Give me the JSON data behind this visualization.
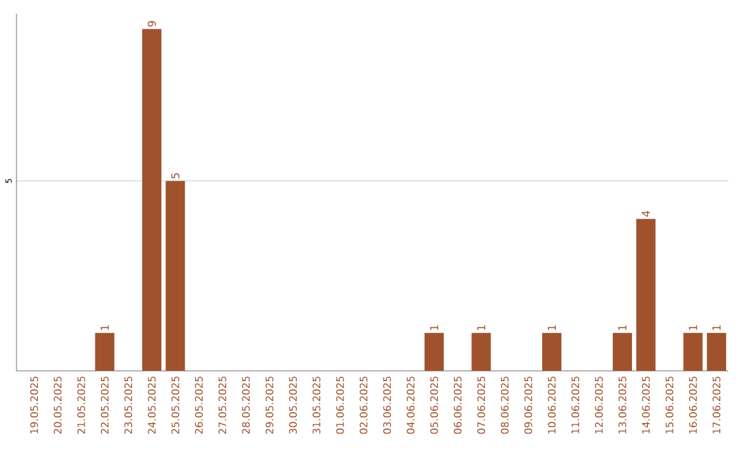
{
  "chart_data": {
    "type": "bar",
    "categories": [
      "19.05.2025",
      "20.05.2025",
      "21.05.2025",
      "22.05.2025",
      "23.05.2025",
      "24.05.2025",
      "25.05.2025",
      "26.05.2025",
      "27.05.2025",
      "28.05.2025",
      "29.05.2025",
      "30.05.2025",
      "31.05.2025",
      "01.06.2025",
      "02.06.2025",
      "03.06.2025",
      "04.06.2025",
      "05.06.2025",
      "06.06.2025",
      "07.06.2025",
      "08.06.2025",
      "09.06.2025",
      "10.06.2025",
      "11.06.2025",
      "12.06.2025",
      "13.06.2025",
      "14.06.2025",
      "15.06.2025",
      "16.06.2025",
      "17.06.2025"
    ],
    "values": [
      0,
      0,
      0,
      1,
      0,
      9,
      5,
      0,
      0,
      0,
      0,
      0,
      0,
      0,
      0,
      0,
      0,
      1,
      0,
      1,
      0,
      0,
      1,
      0,
      0,
      1,
      4,
      0,
      1,
      1
    ],
    "value_labels": [
      null,
      null,
      null,
      "1",
      null,
      "9",
      "5",
      null,
      null,
      null,
      null,
      null,
      null,
      null,
      null,
      null,
      null,
      "1",
      null,
      "1",
      null,
      null,
      "1",
      null,
      null,
      "1",
      "4",
      null,
      "1",
      "1"
    ],
    "color": "#a0522d",
    "ylim": [
      0,
      9.4
    ],
    "yticks": [
      5
    ],
    "grid": "y"
  }
}
